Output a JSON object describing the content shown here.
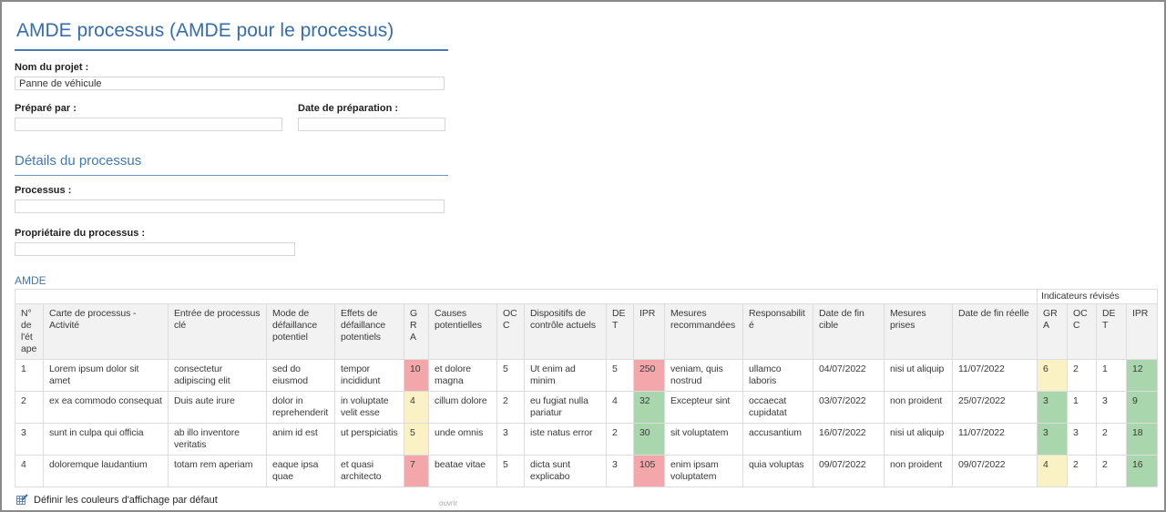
{
  "page": {
    "title": "AMDE processus (AMDE pour le processus)"
  },
  "colors": {
    "title_blue": "#366dad",
    "section_blue": "#4077b5",
    "status": {
      "red": "#f4a7ab",
      "yellow": "#faf1c4",
      "green": "#a9d6ac"
    }
  },
  "form": {
    "project_name": {
      "label": "Nom du projet :",
      "value": "Panne de véhicule"
    },
    "prepared_by": {
      "label": "Préparé par :",
      "value": ""
    },
    "preparation_date": {
      "label": "Date de préparation :",
      "value": ""
    }
  },
  "process_details": {
    "heading": "Détails du processus",
    "process": {
      "label": "Processus :",
      "value": ""
    },
    "owner": {
      "label": "Propriétaire du processus :",
      "value": ""
    }
  },
  "amde": {
    "heading": "AMDE",
    "group_header": "Indicateurs révisés",
    "columns": [
      "N° de l'étape",
      "Carte de processus - Activité",
      "Entrée de processus clé",
      "Mode de défaillance potentiel",
      "Effets de défaillance potentiels",
      "GRA",
      "Causes potentielles",
      "OCC",
      "Dispositifs de contrôle actuels",
      "DET",
      "IPR",
      "Mesures recommandées",
      "Responsabilité",
      "Date de fin cible",
      "Mesures prises",
      "Date de fin réelle",
      "GRA",
      "OCC",
      "DET",
      "IPR"
    ],
    "rows": [
      {
        "cells": [
          "1",
          "Lorem ipsum dolor sit amet",
          "consectetur adipiscing elit",
          "sed do eiusmod",
          "tempor incididunt",
          "10",
          "et dolore magna",
          "5",
          "Ut enim ad minim",
          "5",
          "250",
          "veniam, quis nostrud",
          "ullamco laboris",
          "04/07/2022",
          "nisi ut aliquip",
          "11/07/2022",
          "6",
          "2",
          "1",
          "12"
        ],
        "colors": {
          "5": "red",
          "10": "red",
          "16": "yellow",
          "19": "green"
        }
      },
      {
        "cells": [
          "2",
          "ex ea commodo consequat",
          "Duis aute irure",
          "dolor in reprehenderit",
          "in voluptate velit esse",
          "4",
          "cillum dolore",
          "2",
          "eu fugiat nulla pariatur",
          "4",
          "32",
          "Excepteur sint",
          "occaecat cupidatat",
          "03/07/2022",
          "non proident",
          "25/07/2022",
          "3",
          "1",
          "3",
          "9"
        ],
        "colors": {
          "5": "yellow",
          "10": "green",
          "16": "green",
          "19": "green"
        }
      },
      {
        "cells": [
          "3",
          "sunt in culpa qui officia",
          "ab illo inventore veritatis",
          "anim id est",
          "ut perspiciatis",
          "5",
          "unde omnis",
          "3",
          "iste natus error",
          "2",
          "30",
          "sit voluptatem",
          "accusantium",
          "16/07/2022",
          "nisi ut aliquip",
          "11/07/2022",
          "3",
          "3",
          "2",
          "18"
        ],
        "colors": {
          "5": "yellow",
          "10": "green",
          "16": "green",
          "19": "green"
        }
      },
      {
        "cells": [
          "4",
          "doloremque laudantium",
          "totam rem aperiam",
          "eaque ipsa quae",
          "et quasi architecto",
          "7",
          "beatae vitae",
          "5",
          "dicta sunt explicabo",
          "3",
          "105",
          "enim ipsam voluptatem",
          "quia voluptas",
          "09/07/2022",
          "non proident",
          "09/07/2022",
          "4",
          "2",
          "2",
          "16"
        ],
        "colors": {
          "5": "red",
          "10": "red",
          "16": "yellow",
          "19": "green"
        }
      }
    ]
  },
  "footer": {
    "set_default_colors": "Définir les couleurs d'affichage par défaut",
    "open": "ouvrir"
  }
}
